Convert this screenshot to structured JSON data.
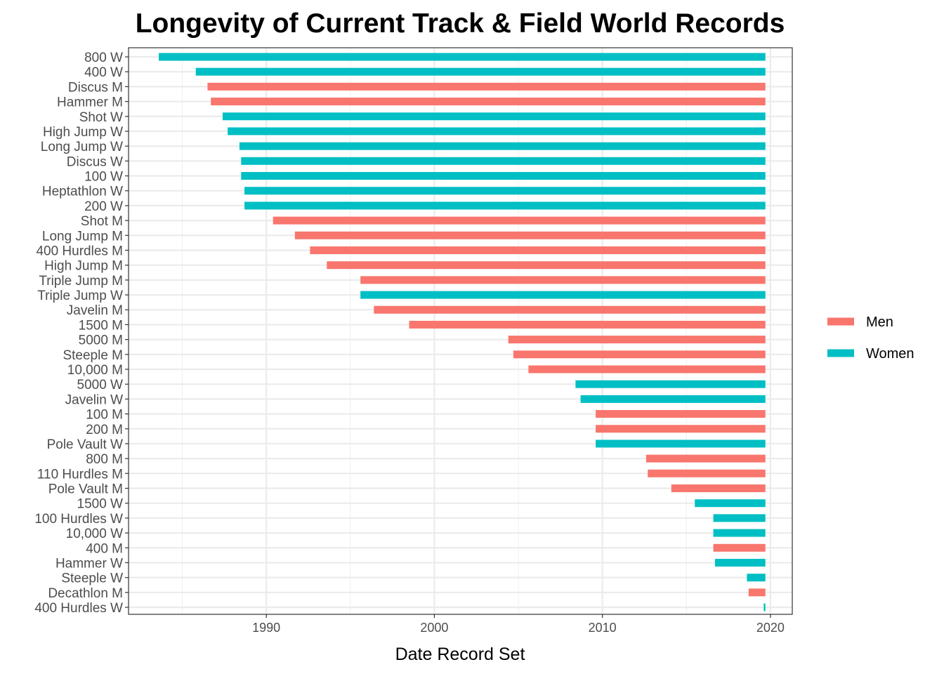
{
  "chart_data": {
    "type": "bar",
    "orientation": "horizontal-range",
    "title": "Longevity of Current Track & Field World Records",
    "xlabel": "Date Record Set",
    "ylabel": "",
    "xlim": [
      1981.8,
      2021.3
    ],
    "xticks": [
      1990,
      2000,
      2010,
      2020
    ],
    "end_date": 2019.7,
    "grid": true,
    "legend_placement": "right",
    "colors": {
      "Men": "#F8766D",
      "Women": "#00BFC4"
    },
    "legend": [
      "Men",
      "Women"
    ],
    "records": [
      {
        "event": "800 W",
        "group": "Women",
        "start": 1983.6
      },
      {
        "event": "400 W",
        "group": "Women",
        "start": 1985.8
      },
      {
        "event": "Discus M",
        "group": "Men",
        "start": 1986.5
      },
      {
        "event": "Hammer M",
        "group": "Men",
        "start": 1986.7
      },
      {
        "event": "Shot W",
        "group": "Women",
        "start": 1987.4
      },
      {
        "event": "High Jump W",
        "group": "Women",
        "start": 1987.7
      },
      {
        "event": "Long Jump W",
        "group": "Women",
        "start": 1988.4
      },
      {
        "event": "Discus W",
        "group": "Women",
        "start": 1988.5
      },
      {
        "event": "100 W",
        "group": "Women",
        "start": 1988.5
      },
      {
        "event": "Heptathlon W",
        "group": "Women",
        "start": 1988.7
      },
      {
        "event": "200 W",
        "group": "Women",
        "start": 1988.7
      },
      {
        "event": "Shot M",
        "group": "Men",
        "start": 1990.4
      },
      {
        "event": "Long Jump M",
        "group": "Men",
        "start": 1991.7
      },
      {
        "event": "400 Hurdles M",
        "group": "Men",
        "start": 1992.6
      },
      {
        "event": "High Jump M",
        "group": "Men",
        "start": 1993.6
      },
      {
        "event": "Triple Jump M",
        "group": "Men",
        "start": 1995.6
      },
      {
        "event": "Triple Jump W",
        "group": "Women",
        "start": 1995.6
      },
      {
        "event": "Javelin M",
        "group": "Men",
        "start": 1996.4
      },
      {
        "event": "1500 M",
        "group": "Men",
        "start": 1998.5
      },
      {
        "event": "5000 M",
        "group": "Men",
        "start": 2004.4
      },
      {
        "event": "Steeple M",
        "group": "Men",
        "start": 2004.7
      },
      {
        "event": "10,000 M",
        "group": "Men",
        "start": 2005.6
      },
      {
        "event": "5000 W",
        "group": "Women",
        "start": 2008.4
      },
      {
        "event": "Javelin W",
        "group": "Women",
        "start": 2008.7
      },
      {
        "event": "100 M",
        "group": "Men",
        "start": 2009.6
      },
      {
        "event": "200 M",
        "group": "Men",
        "start": 2009.6
      },
      {
        "event": "Pole Vault W",
        "group": "Women",
        "start": 2009.6
      },
      {
        "event": "800 M",
        "group": "Men",
        "start": 2012.6
      },
      {
        "event": "110 Hurdles M",
        "group": "Men",
        "start": 2012.7
      },
      {
        "event": "Pole Vault M",
        "group": "Men",
        "start": 2014.1
      },
      {
        "event": "1500 W",
        "group": "Women",
        "start": 2015.5
      },
      {
        "event": "100 Hurdles W",
        "group": "Women",
        "start": 2016.6
      },
      {
        "event": "10,000 W",
        "group": "Women",
        "start": 2016.6
      },
      {
        "event": "400 M",
        "group": "Men",
        "start": 2016.6
      },
      {
        "event": "Hammer W",
        "group": "Women",
        "start": 2016.7
      },
      {
        "event": "Steeple W",
        "group": "Women",
        "start": 2018.6
      },
      {
        "event": "Decathlon M",
        "group": "Men",
        "start": 2018.7
      },
      {
        "event": "400 Hurdles W",
        "group": "Women",
        "start": 2019.6
      }
    ]
  }
}
